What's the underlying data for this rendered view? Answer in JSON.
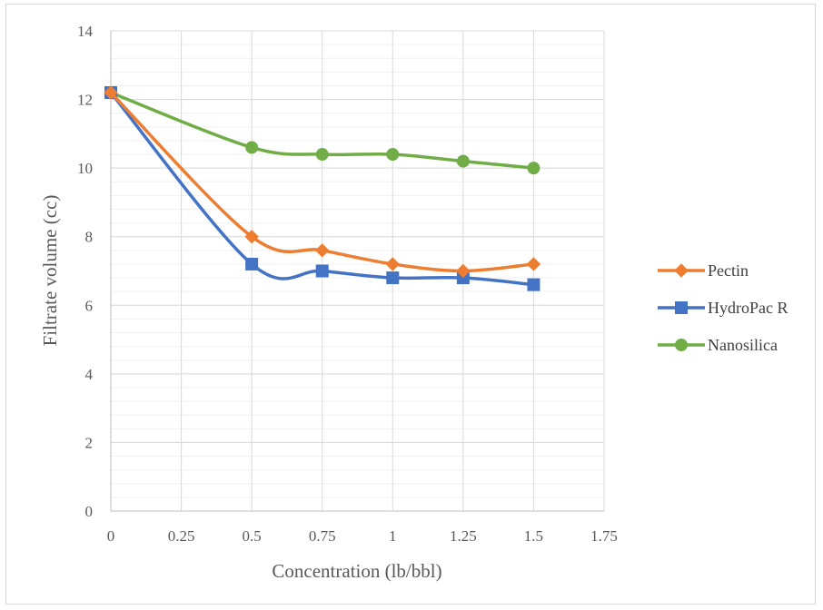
{
  "chart_data": {
    "type": "line",
    "title": "",
    "xlabel": "Concentration (lb/bbl)",
    "ylabel": "Filtrate volume (cc)",
    "xlim": [
      0,
      1.75
    ],
    "ylim": [
      0,
      14
    ],
    "x_ticks": [
      "0",
      "0.25",
      "0.5",
      "0.75",
      "1",
      "1.25",
      "1.5",
      "1.75"
    ],
    "y_ticks": [
      "0",
      "2",
      "4",
      "6",
      "8",
      "10",
      "12",
      "14"
    ],
    "x_tick_values": [
      0,
      0.25,
      0.5,
      0.75,
      1,
      1.25,
      1.5,
      1.75
    ],
    "y_tick_values": [
      0,
      2,
      4,
      6,
      8,
      10,
      12,
      14
    ],
    "grid": true,
    "minor_grid": true,
    "smooth": true,
    "legend_position": "right",
    "series": [
      {
        "name": "Pectin",
        "color": "#ED7D31",
        "marker": "diamond",
        "x": [
          0,
          0.5,
          0.75,
          1,
          1.25,
          1.5
        ],
        "y": [
          12.2,
          8.0,
          7.6,
          7.2,
          7.0,
          7.2
        ]
      },
      {
        "name": "HydroPac R",
        "color": "#4472C4",
        "marker": "square",
        "x": [
          0,
          0.5,
          0.75,
          1,
          1.25,
          1.5
        ],
        "y": [
          12.2,
          7.2,
          7.0,
          6.8,
          6.8,
          6.6
        ]
      },
      {
        "name": "Nanosilica",
        "color": "#70AD47",
        "marker": "circle",
        "x": [
          0,
          0.5,
          0.75,
          1,
          1.25,
          1.5
        ],
        "y": [
          12.2,
          10.6,
          10.4,
          10.4,
          10.2,
          10.0
        ]
      }
    ]
  }
}
